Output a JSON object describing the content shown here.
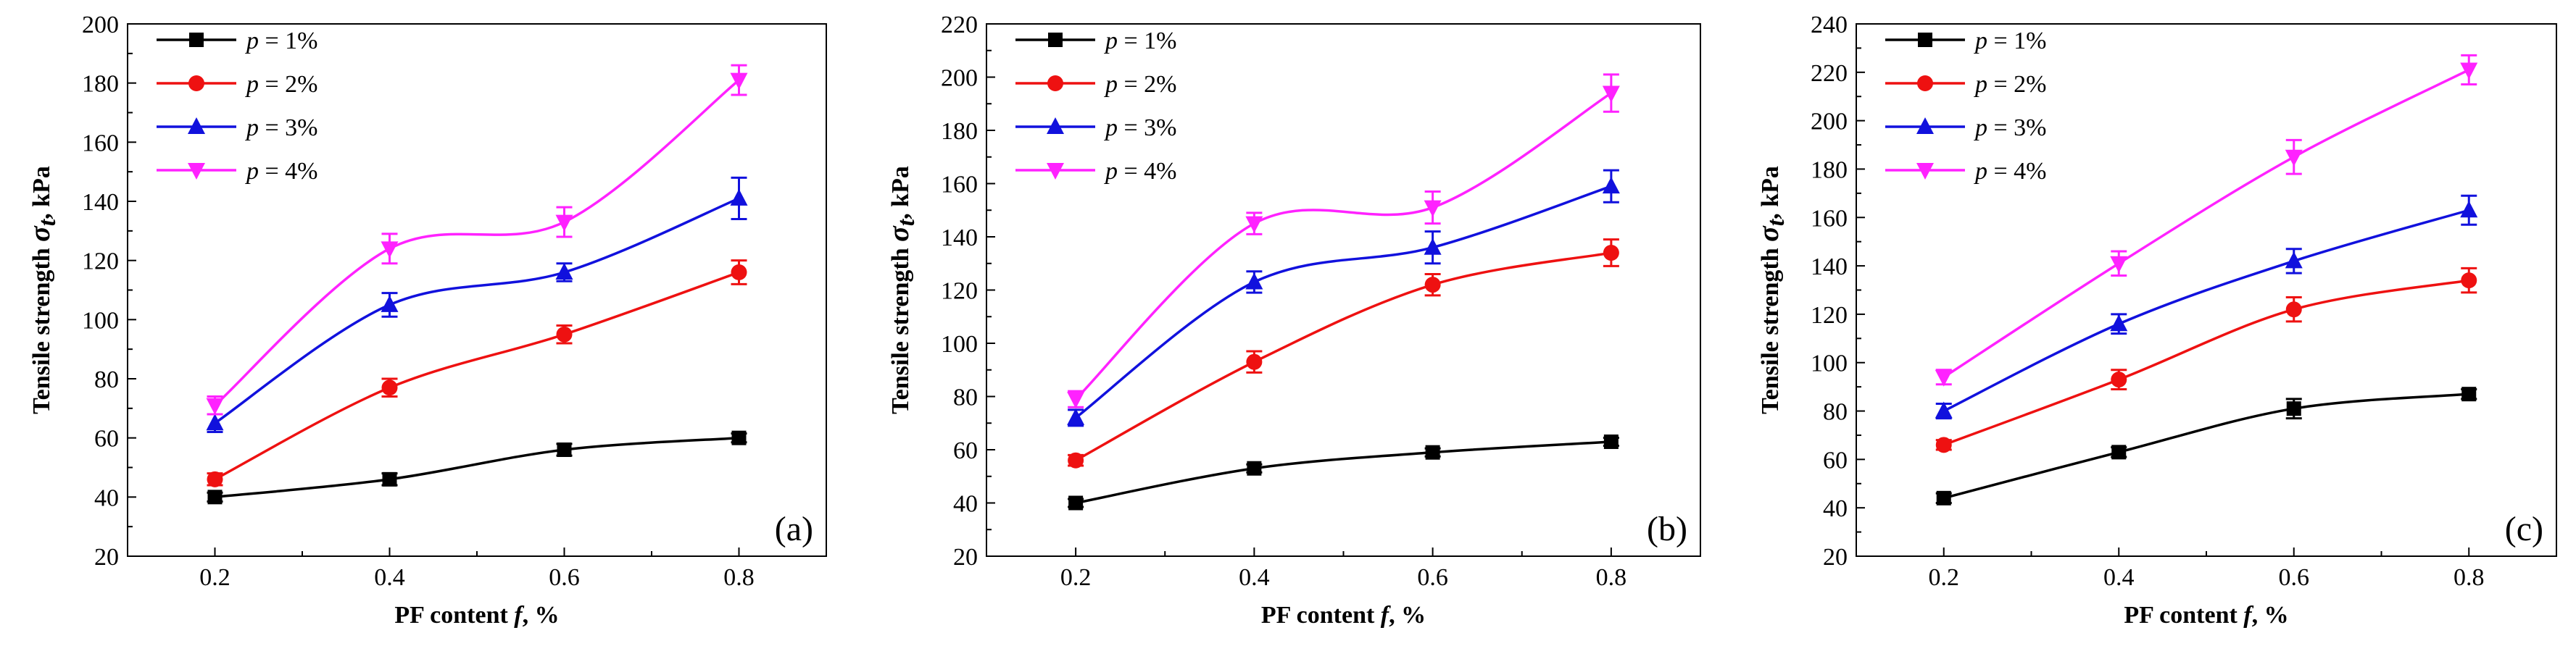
{
  "figure": {
    "series_colors": [
      "#000000",
      "#ee1111",
      "#1111dd",
      "#ff22ff"
    ],
    "marker_shapes": [
      "square",
      "circle",
      "triangle-up",
      "triangle-down"
    ]
  },
  "chart_data": [
    {
      "type": "line",
      "panel_label": "(a)",
      "xlabel_prefix": "PF content ",
      "xlabel_var": "f",
      "xlabel_suffix": ", %",
      "ylabel_prefix": "Tensile strength ",
      "ylabel_var": "σ",
      "ylabel_sub": "t",
      "ylabel_suffix": ", kPa",
      "x": [
        0.2,
        0.4,
        0.6,
        0.8
      ],
      "xlim": [
        0.1,
        0.9
      ],
      "xticks": [
        "0.2",
        "0.4",
        "0.6",
        "0.8"
      ],
      "ylim": [
        20,
        200
      ],
      "ytick_step": 20,
      "yticks": [
        "20",
        "40",
        "60",
        "80",
        "100",
        "120",
        "140",
        "160",
        "180",
        "200"
      ],
      "series": [
        {
          "name": "p = 1%",
          "var": "p",
          "label": " = 1%",
          "values": [
            40,
            46,
            56,
            60
          ],
          "errors": [
            1.5,
            2,
            2,
            1.5
          ]
        },
        {
          "name": "p = 2%",
          "var": "p",
          "label": " = 2%",
          "values": [
            46,
            77,
            95,
            116
          ],
          "errors": [
            2,
            3,
            3,
            4
          ]
        },
        {
          "name": "p = 3%",
          "var": "p",
          "label": " = 3%",
          "values": [
            65,
            105,
            116,
            141
          ],
          "errors": [
            3,
            4,
            3,
            7
          ]
        },
        {
          "name": "p = 4%",
          "var": "p",
          "label": " = 4%",
          "values": [
            71,
            124,
            133,
            181
          ],
          "errors": [
            3,
            5,
            5,
            5
          ]
        }
      ]
    },
    {
      "type": "line",
      "panel_label": "(b)",
      "xlabel_prefix": "PF content ",
      "xlabel_var": "f",
      "xlabel_suffix": ", %",
      "ylabel_prefix": "Tensile strength ",
      "ylabel_var": "σ",
      "ylabel_sub": "t",
      "ylabel_suffix": ", kPa",
      "x": [
        0.2,
        0.4,
        0.6,
        0.8
      ],
      "xlim": [
        0.1,
        0.9
      ],
      "xticks": [
        "0.2",
        "0.4",
        "0.6",
        "0.8"
      ],
      "ylim": [
        20,
        220
      ],
      "ytick_step": 20,
      "yticks": [
        "20",
        "40",
        "60",
        "80",
        "100",
        "120",
        "140",
        "160",
        "180",
        "200",
        "220"
      ],
      "series": [
        {
          "name": "p = 1%",
          "var": "p",
          "label": " = 1%",
          "values": [
            40,
            53,
            59,
            63
          ],
          "errors": [
            1.5,
            1.5,
            1.5,
            1.5
          ]
        },
        {
          "name": "p = 2%",
          "var": "p",
          "label": " = 2%",
          "values": [
            56,
            93,
            122,
            134
          ],
          "errors": [
            2,
            4,
            4,
            5
          ]
        },
        {
          "name": "p = 3%",
          "var": "p",
          "label": " = 3%",
          "values": [
            72,
            123,
            136,
            159
          ],
          "errors": [
            3,
            4,
            6,
            6
          ]
        },
        {
          "name": "p = 4%",
          "var": "p",
          "label": " = 4%",
          "values": [
            79,
            145,
            151,
            194
          ],
          "errors": [
            3,
            4,
            6,
            7
          ]
        }
      ]
    },
    {
      "type": "line",
      "panel_label": "(c)",
      "xlabel_prefix": "PF content ",
      "xlabel_var": "f",
      "xlabel_suffix": ", %",
      "ylabel_prefix": "Tensile strength ",
      "ylabel_var": "σ",
      "ylabel_sub": "t",
      "ylabel_suffix": ", kPa",
      "x": [
        0.2,
        0.4,
        0.6,
        0.8
      ],
      "xlim": [
        0.1,
        0.9
      ],
      "xticks": [
        "0.2",
        "0.4",
        "0.6",
        "0.8"
      ],
      "ylim": [
        20,
        240
      ],
      "ytick_step": 20,
      "yticks": [
        "20",
        "40",
        "60",
        "80",
        "100",
        "120",
        "140",
        "160",
        "180",
        "200",
        "220",
        "240"
      ],
      "series": [
        {
          "name": "p = 1%",
          "var": "p",
          "label": " = 1%",
          "values": [
            44,
            63,
            81,
            87
          ],
          "errors": [
            2,
            2,
            4,
            2
          ]
        },
        {
          "name": "p = 2%",
          "var": "p",
          "label": " = 2%",
          "values": [
            66,
            93,
            122,
            134
          ],
          "errors": [
            2,
            4,
            5,
            5
          ]
        },
        {
          "name": "p = 3%",
          "var": "p",
          "label": " = 3%",
          "values": [
            80,
            116,
            142,
            163
          ],
          "errors": [
            3,
            4,
            5,
            6
          ]
        },
        {
          "name": "p = 4%",
          "var": "p",
          "label": " = 4%",
          "values": [
            94,
            141,
            185,
            221
          ],
          "errors": [
            3,
            5,
            7,
            6
          ]
        }
      ]
    }
  ]
}
